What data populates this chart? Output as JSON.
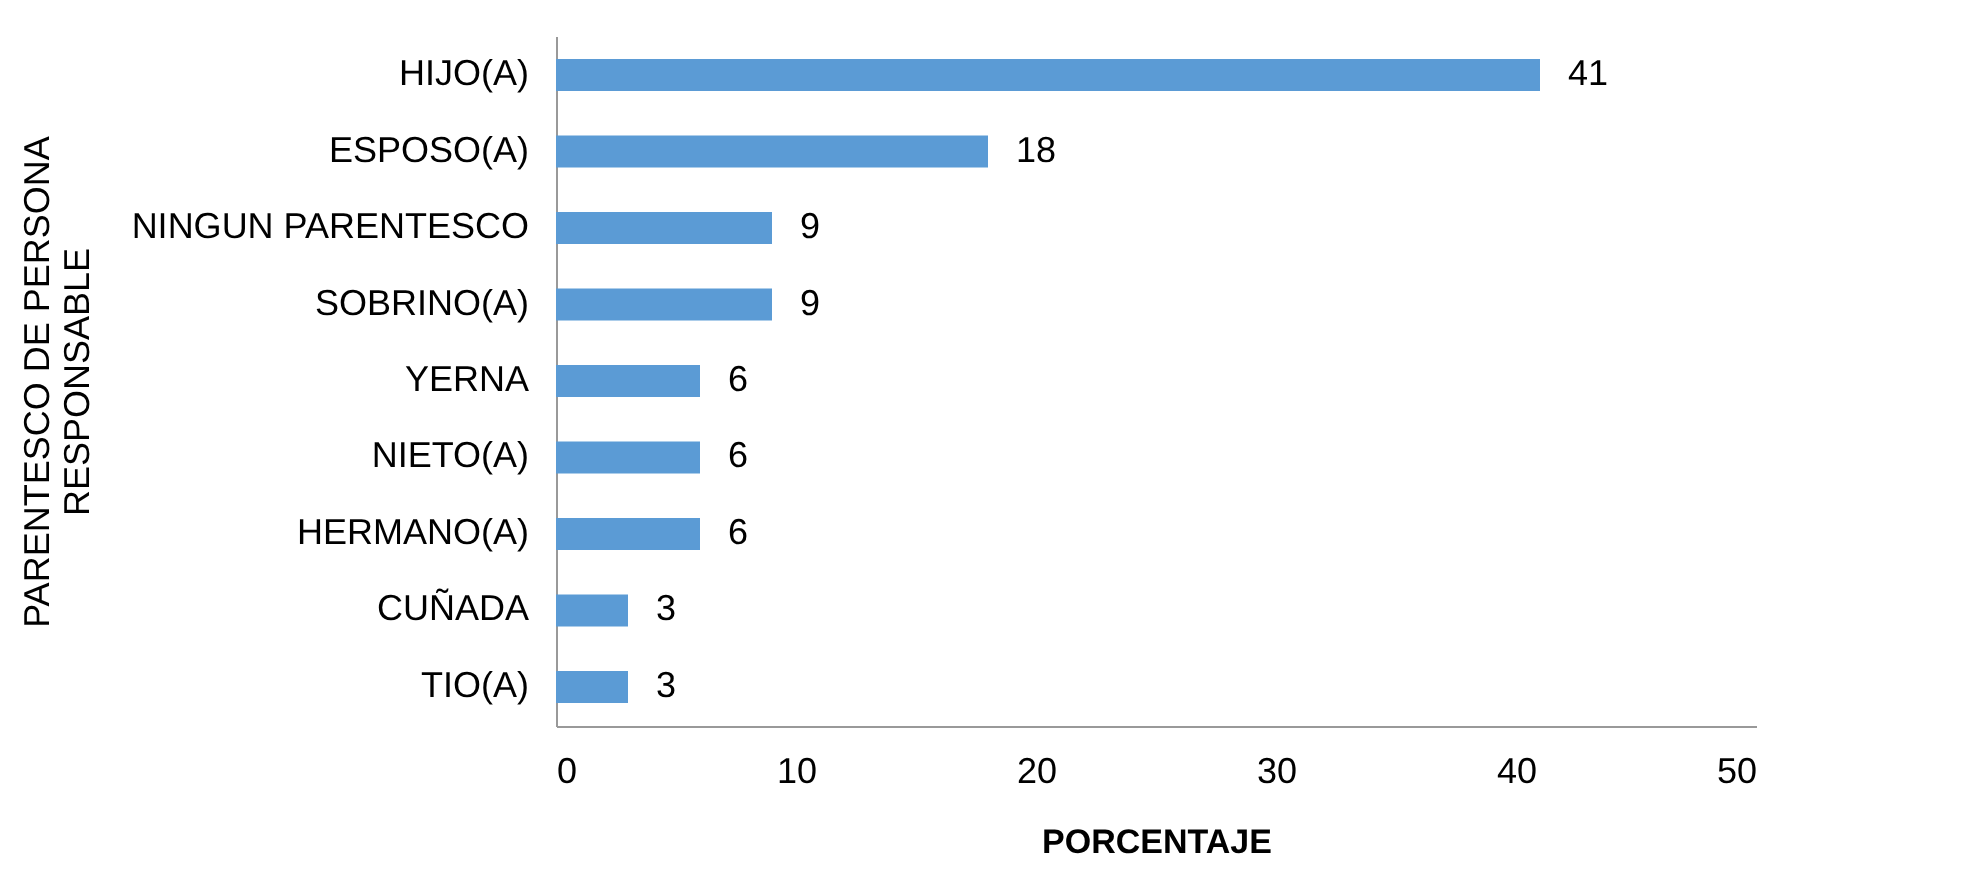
{
  "chart_data": {
    "type": "bar",
    "orientation": "horizontal",
    "xlabel": "PORCENTAJE",
    "ylabel": "PARENTESCO DE PERSONA\nRESPONSABLE",
    "categories": [
      "HIJO(A)",
      "ESPOSO(A)",
      "NINGUN PARENTESCO",
      "SOBRINO(A)",
      "YERNA",
      "NIETO(A)",
      "HERMANO(A)",
      "CUÑADA",
      "TIO(A)"
    ],
    "values": [
      41,
      18,
      9,
      9,
      6,
      6,
      6,
      3,
      3
    ],
    "color": "#5b9bd5",
    "xlim": [
      0,
      50
    ],
    "xticks": [
      0,
      10,
      20,
      30,
      40,
      50
    ],
    "grid": false,
    "data_labels": true
  }
}
